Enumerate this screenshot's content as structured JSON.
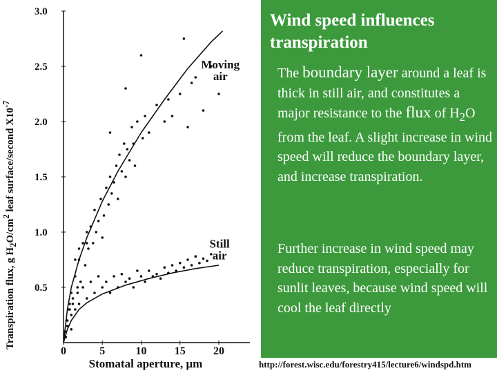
{
  "chart_data": {
    "type": "scatter",
    "ylabel_parts": [
      "Transpiration flux, g H",
      "2",
      "O/cm",
      "2",
      " leaf surface/second X10",
      "-7"
    ],
    "xlabel_parts": [
      "Stomatal aperture, ",
      "μ",
      "m"
    ],
    "xlim": [
      0,
      20
    ],
    "ylim": [
      0,
      3.0
    ],
    "x_ticks": [
      0,
      5,
      10,
      15,
      20
    ],
    "x_tick_labels": [
      "0",
      "5",
      "10",
      "15",
      "20"
    ],
    "y_ticks": [
      0.5,
      1.0,
      1.5,
      2.0,
      2.5,
      3.0
    ],
    "y_tick_labels": [
      "0.5",
      "1.0",
      "1.5",
      "2.0",
      "2.5",
      "3.0"
    ],
    "grid": false,
    "annotations": [
      {
        "lines": [
          "Moving",
          "air"
        ],
        "x": 20.2,
        "y": 2.48
      },
      {
        "lines": [
          "Still",
          "air"
        ],
        "x": 20.1,
        "y": 0.86
      }
    ],
    "series": [
      {
        "label": "Moving air",
        "points": [
          [
            0.5,
            0.2
          ],
          [
            0.8,
            0.3
          ],
          [
            1.0,
            0.45
          ],
          [
            1.2,
            0.35
          ],
          [
            1.5,
            0.6
          ],
          [
            1.8,
            0.5
          ],
          [
            2.0,
            0.75
          ],
          [
            2.2,
            0.55
          ],
          [
            2.5,
            0.9
          ],
          [
            2.8,
            0.7
          ],
          [
            3.0,
            1.0
          ],
          [
            3.2,
            0.85
          ],
          [
            3.5,
            1.05
          ],
          [
            3.8,
            0.9
          ],
          [
            4.0,
            1.2
          ],
          [
            4.2,
            1.0
          ],
          [
            4.5,
            1.1
          ],
          [
            4.8,
            1.3
          ],
          [
            5.0,
            0.95
          ],
          [
            5.2,
            1.15
          ],
          [
            5.5,
            1.4
          ],
          [
            5.8,
            1.25
          ],
          [
            6.0,
            1.5
          ],
          [
            6.2,
            1.35
          ],
          [
            6.5,
            1.45
          ],
          [
            6.8,
            1.6
          ],
          [
            7.0,
            1.3
          ],
          [
            7.2,
            1.7
          ],
          [
            7.5,
            1.55
          ],
          [
            7.8,
            1.8
          ],
          [
            8.0,
            1.5
          ],
          [
            8.2,
            1.75
          ],
          [
            8.5,
            1.65
          ],
          [
            8.8,
            1.95
          ],
          [
            9.0,
            1.8
          ],
          [
            9.2,
            1.6
          ],
          [
            9.5,
            2.0
          ],
          [
            10.0,
            2.6
          ],
          [
            10.2,
            1.85
          ],
          [
            10.5,
            2.05
          ],
          [
            11.0,
            1.9
          ],
          [
            12.0,
            2.15
          ],
          [
            13.0,
            2.0
          ],
          [
            13.5,
            2.2
          ],
          [
            14.0,
            2.05
          ],
          [
            15.0,
            2.25
          ],
          [
            16.0,
            1.95
          ],
          [
            16.5,
            2.35
          ],
          [
            17.0,
            2.4
          ],
          [
            18.0,
            2.1
          ],
          [
            19.0,
            2.5
          ],
          [
            20.0,
            2.25
          ],
          [
            15.5,
            2.75
          ],
          [
            8.0,
            2.3
          ],
          [
            6.0,
            1.9
          ]
        ],
        "fit": [
          [
            0,
            0
          ],
          [
            0.5,
            0.3
          ],
          [
            1,
            0.5
          ],
          [
            2,
            0.75
          ],
          [
            3,
            0.95
          ],
          [
            5,
            1.28
          ],
          [
            7,
            1.55
          ],
          [
            10,
            1.9
          ],
          [
            13,
            2.2
          ],
          [
            16,
            2.48
          ],
          [
            19,
            2.72
          ],
          [
            20.5,
            2.82
          ]
        ]
      },
      {
        "label": "Still air",
        "points": [
          [
            0.2,
            0.1
          ],
          [
            0.4,
            0.2
          ],
          [
            0.6,
            0.3
          ],
          [
            0.8,
            0.35
          ],
          [
            1.0,
            0.25
          ],
          [
            1.2,
            0.4
          ],
          [
            1.5,
            0.3
          ],
          [
            1.8,
            0.45
          ],
          [
            2.0,
            0.35
          ],
          [
            2.5,
            0.5
          ],
          [
            3.0,
            0.4
          ],
          [
            3.5,
            0.55
          ],
          [
            4.0,
            0.45
          ],
          [
            4.5,
            0.6
          ],
          [
            5.0,
            0.5
          ],
          [
            5.5,
            0.55
          ],
          [
            6.0,
            0.45
          ],
          [
            6.5,
            0.6
          ],
          [
            7.0,
            0.5
          ],
          [
            7.5,
            0.62
          ],
          [
            8.0,
            0.55
          ],
          [
            8.5,
            0.58
          ],
          [
            9.0,
            0.5
          ],
          [
            9.5,
            0.65
          ],
          [
            10.0,
            0.6
          ],
          [
            10.5,
            0.55
          ],
          [
            11.0,
            0.65
          ],
          [
            11.5,
            0.6
          ],
          [
            12.0,
            0.62
          ],
          [
            12.5,
            0.58
          ],
          [
            13.0,
            0.68
          ],
          [
            13.5,
            0.63
          ],
          [
            14.0,
            0.7
          ],
          [
            14.5,
            0.65
          ],
          [
            15.0,
            0.72
          ],
          [
            15.5,
            0.68
          ],
          [
            16.0,
            0.75
          ],
          [
            16.5,
            0.7
          ],
          [
            17.0,
            0.78
          ],
          [
            17.5,
            0.72
          ],
          [
            18.0,
            0.76
          ],
          [
            18.5,
            0.74
          ],
          [
            19.0,
            0.8
          ],
          [
            2.0,
            0.85
          ],
          [
            3.0,
            0.9
          ],
          [
            1.5,
            0.75
          ],
          [
            0.5,
            0.15
          ],
          [
            1.0,
            0.12
          ],
          [
            0.3,
            0.05
          ]
        ],
        "fit": [
          [
            0,
            0
          ],
          [
            0.5,
            0.12
          ],
          [
            1,
            0.2
          ],
          [
            2,
            0.3
          ],
          [
            3,
            0.36
          ],
          [
            5,
            0.44
          ],
          [
            8,
            0.52
          ],
          [
            11,
            0.58
          ],
          [
            14,
            0.63
          ],
          [
            17,
            0.67
          ],
          [
            20,
            0.7
          ]
        ]
      }
    ]
  },
  "title": "Wind speed influences transpiration",
  "para1": {
    "p1": "The ",
    "p2": "boundary layer",
    "p3": " around a leaf is thick in still air, and constitutes a major resistance to the ",
    "p4": "flux",
    "p5": " of H",
    "p6": "2",
    "p7": "O from the leaf. A slight increase in wind speed will reduce the boundary layer, and increase transpiration."
  },
  "para2": "Further increase in wind speed may reduce transpiration, especially for sunlit leaves, because wind speed will cool the leaf directly",
  "footer_url": "http://forest.wisc.edu/forestry415/lecture6/windspd.htm",
  "colors": {
    "panel": "#3c9a3c",
    "text_on_panel": "#ffffff",
    "ink": "#111111"
  }
}
